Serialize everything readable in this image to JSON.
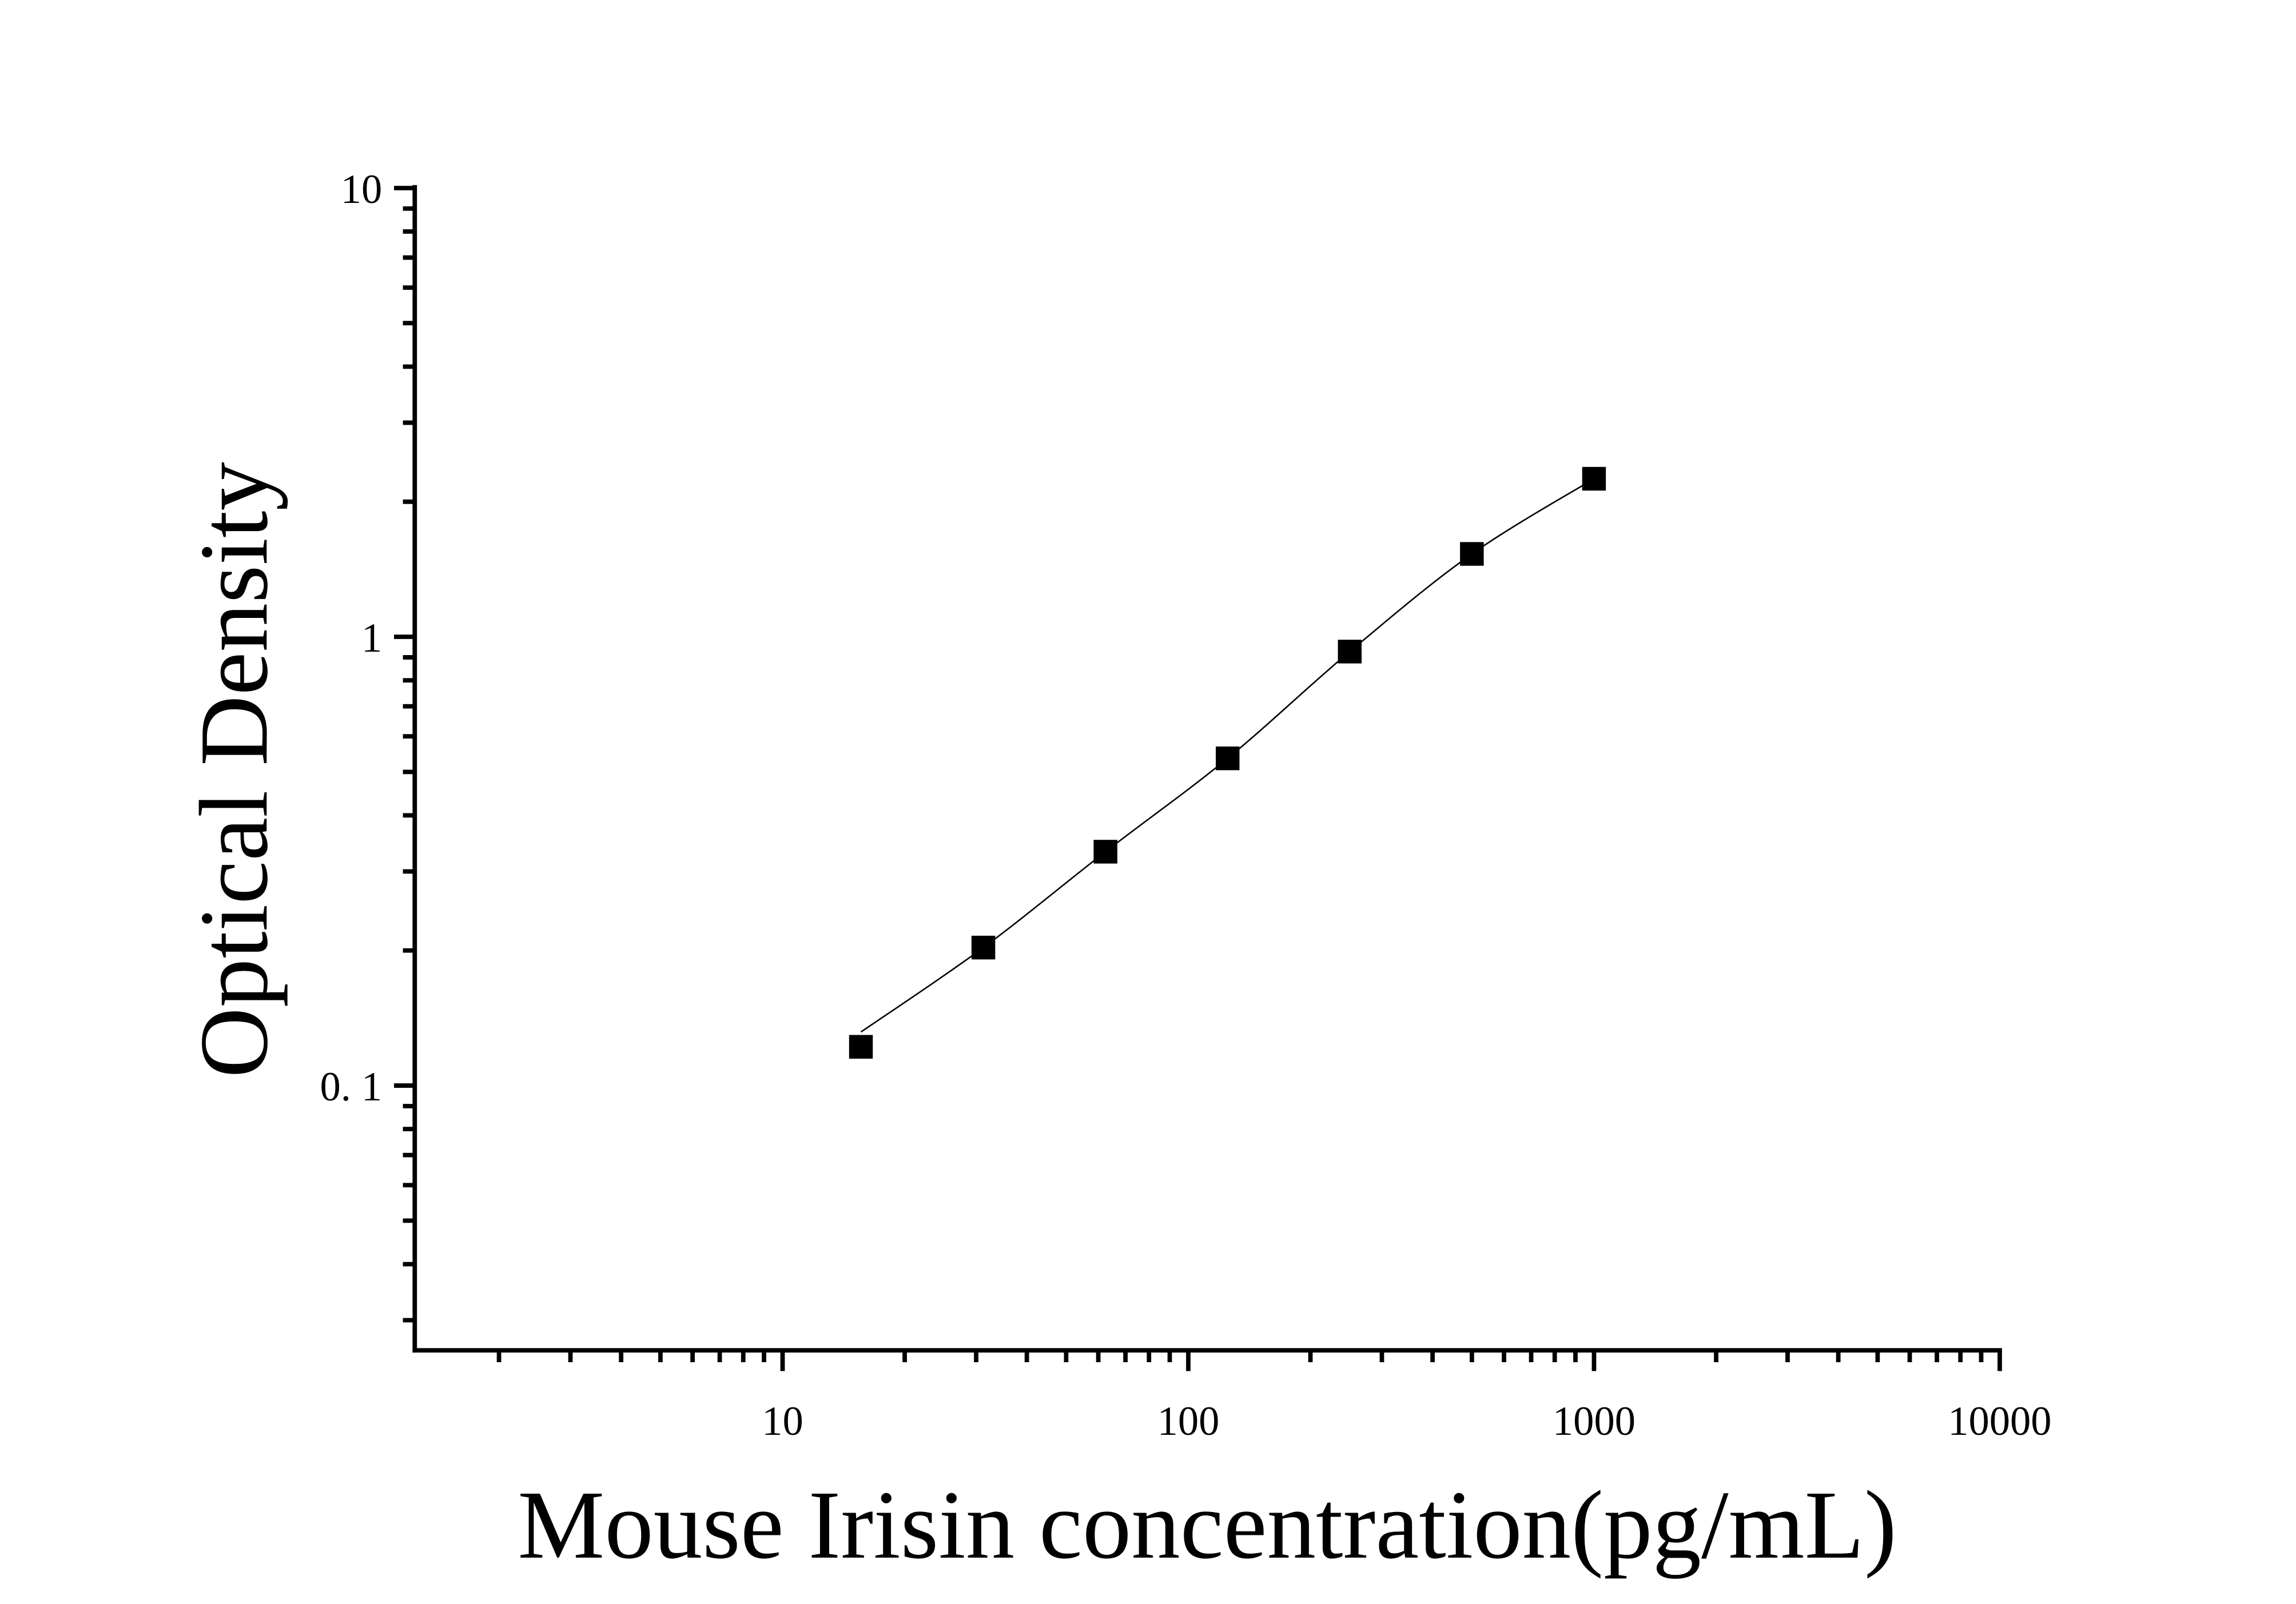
{
  "chart_data": {
    "type": "scatter",
    "title": "",
    "xlabel": "Mouse Irisin concentration(pg/mL)",
    "ylabel": "Optical Density",
    "xscale": "log",
    "yscale": "log",
    "xlim": [
      1.24,
      10000
    ],
    "ylim": [
      0.0257,
      10
    ],
    "x_ticks": [
      10,
      100,
      1000,
      10000
    ],
    "x_tick_labels": [
      "10",
      "100",
      "1000",
      "10000"
    ],
    "y_ticks": [
      0.1,
      1,
      10
    ],
    "y_tick_labels": [
      "0. 1",
      "1",
      "10"
    ],
    "grid": false,
    "marker": "square",
    "series": [
      {
        "x": [
          15.6,
          31.25,
          62.5,
          125,
          250,
          500,
          1000
        ],
        "y": [
          0.122,
          0.203,
          0.332,
          0.536,
          0.927,
          1.53,
          2.25
        ]
      }
    ],
    "fit_curve": true,
    "color": "#000000"
  }
}
